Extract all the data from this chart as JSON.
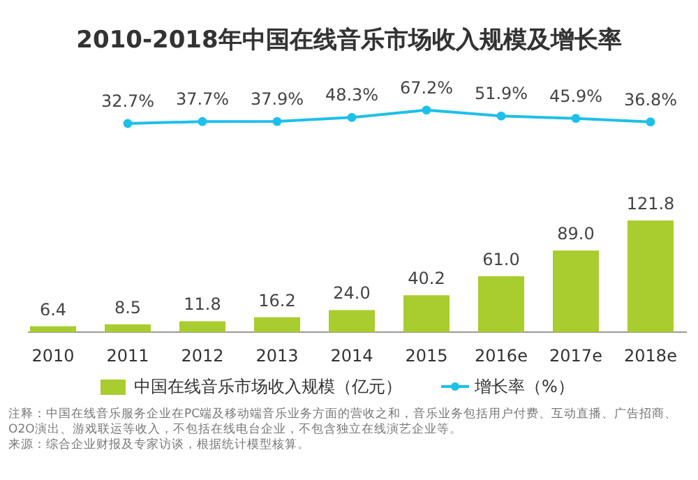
{
  "chart_data": [
    {
      "type": "line",
      "title": "2010-2018年中国在线音乐市场收入规模及增长率",
      "categories": [
        null,
        null,
        null,
        null,
        null,
        null,
        null,
        null,
        null
      ],
      "series": [
        {
          "name": "增长率（%）",
          "color": "#1cc0ea",
          "values": [
            null,
            32.7,
            37.7,
            37.9,
            48.3,
            67.2,
            51.9,
            45.9,
            36.8
          ],
          "value_labels": [
            null,
            "32.7%",
            "37.7%",
            "37.9%",
            "48.3%",
            "67.2%",
            "51.9%",
            "45.9%",
            "36.8%"
          ]
        }
      ],
      "marker": "circle",
      "legend": "bottom"
    },
    {
      "type": "bar",
      "categories": [
        "2010",
        "2011",
        "2012",
        "2013",
        "2014",
        "2015",
        "2016e",
        "2017e",
        "2018e"
      ],
      "series": [
        {
          "name": "中国在线音乐市场收入规模（亿元）",
          "color": "#a9cc2e",
          "values": [
            6.4,
            8.5,
            11.8,
            16.2,
            24.0,
            40.2,
            61.0,
            89.0,
            121.8
          ],
          "value_labels": [
            "6.4",
            "8.5",
            "11.8",
            "16.2",
            "24.0",
            "40.2",
            "61.0",
            "89.0",
            "121.8"
          ]
        }
      ],
      "legend": "bottom",
      "annotations": [
        "注释：中国在线音乐服务企业在PC端及移动端音乐业务方面的营收之和，音乐业务包括用户付费、互动直播、广告招商、O2O演出、游戏联运等收入，不包括在线电台企业，不包含独立在线演艺企业等。",
        "来源：综合企业财报及专家访谈，根据统计模型核算。"
      ]
    }
  ]
}
